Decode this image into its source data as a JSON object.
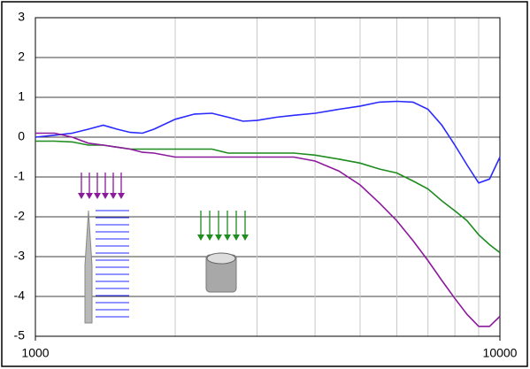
{
  "chart_data": {
    "type": "line",
    "x": [
      1000,
      1100,
      1200,
      1300,
      1400,
      1500,
      1600,
      1700,
      1800,
      2000,
      2200,
      2400,
      2600,
      2800,
      3000,
      3300,
      3600,
      4000,
      4500,
      5000,
      5500,
      6000,
      6500,
      7000,
      7500,
      8000,
      8500,
      9000,
      9500,
      10000
    ],
    "series": [
      {
        "color": "#2a2aff",
        "values": [
          0,
          0.05,
          0.1,
          0.2,
          0.3,
          0.2,
          0.12,
          0.1,
          0.2,
          0.45,
          0.58,
          0.6,
          0.5,
          0.4,
          0.42,
          0.5,
          0.55,
          0.6,
          0.7,
          0.78,
          0.88,
          0.9,
          0.88,
          0.7,
          0.3,
          -0.2,
          -0.7,
          -1.15,
          -1.05,
          -0.5
        ]
      },
      {
        "color": "#1e8c1e",
        "values": [
          -0.1,
          -0.1,
          -0.12,
          -0.2,
          -0.2,
          -0.25,
          -0.3,
          -0.3,
          -0.3,
          -0.3,
          -0.3,
          -0.3,
          -0.4,
          -0.4,
          -0.4,
          -0.4,
          -0.4,
          -0.45,
          -0.55,
          -0.65,
          -0.8,
          -0.9,
          -1.1,
          -1.3,
          -1.6,
          -1.85,
          -2.1,
          -2.45,
          -2.7,
          -2.9
        ]
      },
      {
        "color": "#8c1a9c",
        "values": [
          0.1,
          0.1,
          0,
          -0.15,
          -0.2,
          -0.25,
          -0.3,
          -0.38,
          -0.4,
          -0.5,
          -0.5,
          -0.5,
          -0.5,
          -0.5,
          -0.5,
          -0.5,
          -0.5,
          -0.6,
          -0.85,
          -1.2,
          -1.65,
          -2.1,
          -2.6,
          -3.1,
          -3.6,
          -4.05,
          -4.45,
          -4.75,
          -4.75,
          -4.5
        ]
      }
    ],
    "xlog": true,
    "xlim": [
      1000,
      10000
    ],
    "xticks": [
      1000,
      10000
    ],
    "xminor": [
      2000,
      3000,
      4000,
      5000,
      6000,
      7000,
      8000,
      9000
    ],
    "ylim": [
      -5,
      3
    ],
    "yticks": [
      -5,
      -4,
      -3,
      -2,
      -1,
      0,
      1,
      2,
      3
    ],
    "grid": true
  }
}
